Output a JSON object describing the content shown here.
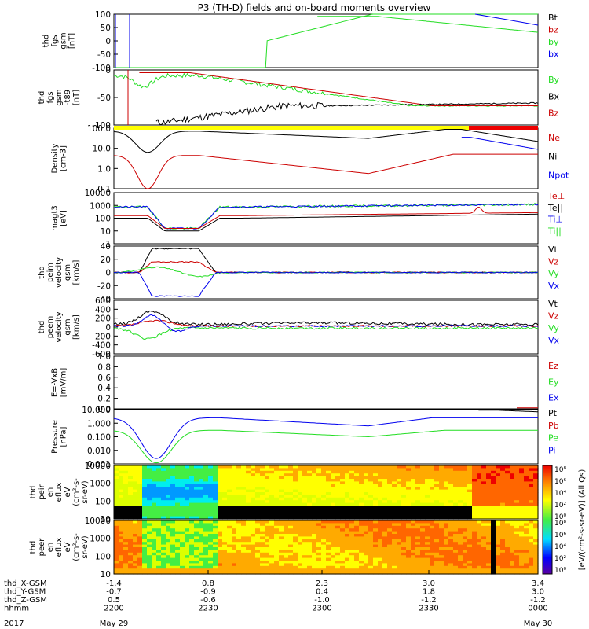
{
  "title": "P3 (TH-D) fields and on-board moments overview",
  "year": "2017",
  "colors": {
    "black": "#000000",
    "red": "#cc0000",
    "green": "#22dd22",
    "blue": "#0000ee",
    "yellow": "#ffff00"
  },
  "chart_data": [
    {
      "type": "line",
      "ylabel": [
        "thd",
        "fgs",
        "gsm",
        "[nT]"
      ],
      "yticks": [
        "100",
        "50",
        "0",
        "-50",
        "-100"
      ],
      "ylim": [
        -100,
        100
      ],
      "legend": [
        {
          "name": "Bt",
          "color": "black"
        },
        {
          "name": "bz",
          "color": "red"
        },
        {
          "name": "by",
          "color": "green"
        },
        {
          "name": "bx",
          "color": "blue"
        }
      ]
    },
    {
      "type": "line",
      "ylabel": [
        "thd",
        "fgs",
        "gsm",
        "-t89",
        "[nT]"
      ],
      "yticks": [
        "0",
        "-50",
        "-100"
      ],
      "ylim": [
        -125,
        25
      ],
      "legend": [
        {
          "name": "By",
          "color": "green"
        },
        {
          "name": "Bx",
          "color": "black"
        },
        {
          "name": "Bz",
          "color": "red"
        }
      ]
    },
    {
      "type": "line",
      "log": true,
      "ylabel": [
        "Density",
        "[cm-3]"
      ],
      "yticks": [
        "100.0",
        "10.0",
        "1.0",
        "0.1"
      ],
      "legend": [
        {
          "name": "Ne",
          "color": "red"
        },
        {
          "name": "Ni",
          "color": "black"
        },
        {
          "name": "Npot",
          "color": "blue"
        }
      ]
    },
    {
      "type": "line",
      "log": true,
      "ylabel": [
        "magt3",
        "[eV]"
      ],
      "yticks": [
        "10000",
        "1000",
        "100",
        "10",
        "1"
      ],
      "legend": [
        {
          "name": "Te⊥",
          "color": "red"
        },
        {
          "name": "Te||",
          "color": "black"
        },
        {
          "name": "Ti⊥",
          "color": "blue"
        },
        {
          "name": "Ti||",
          "color": "green"
        }
      ]
    },
    {
      "type": "line",
      "ylabel": [
        "thd",
        "peim",
        "velocity",
        "gsm",
        "[km/s]"
      ],
      "yticks": [
        "40",
        "20",
        "0",
        "-20",
        "-40"
      ],
      "ylim": [
        -40,
        40
      ],
      "legend": [
        {
          "name": "Vt",
          "color": "black"
        },
        {
          "name": "Vz",
          "color": "red"
        },
        {
          "name": "Vy",
          "color": "green"
        },
        {
          "name": "Vx",
          "color": "blue"
        }
      ]
    },
    {
      "type": "line",
      "ylabel": [
        "thd",
        "peem",
        "velocity",
        "gsm",
        "[km/s]"
      ],
      "yticks": [
        "600",
        "400",
        "200",
        "0",
        "-200",
        "-400",
        "-600"
      ],
      "ylim": [
        -600,
        600
      ],
      "legend": [
        {
          "name": "Vt",
          "color": "black"
        },
        {
          "name": "Vz",
          "color": "red"
        },
        {
          "name": "Vy",
          "color": "green"
        },
        {
          "name": "Vx",
          "color": "blue"
        }
      ]
    },
    {
      "type": "line",
      "ylabel": [
        "E=-VxB",
        "[mV/m]"
      ],
      "yticks": [
        "1.0",
        "0.8",
        "0.6",
        "0.4",
        "0.2",
        "0.0"
      ],
      "ylim": [
        0,
        1
      ],
      "legend": [
        {
          "name": "Ez",
          "color": "red"
        },
        {
          "name": "Ey",
          "color": "green"
        },
        {
          "name": "Ex",
          "color": "blue"
        }
      ]
    },
    {
      "type": "line",
      "log": true,
      "ylabel": [
        "Pressure",
        "[nPa]"
      ],
      "yticks": [
        "10.000",
        "1.000",
        "0.100",
        "0.010",
        "0.001"
      ],
      "legend": [
        {
          "name": "Pt",
          "color": "black"
        },
        {
          "name": "Pb",
          "color": "red"
        },
        {
          "name": "Pe",
          "color": "green"
        },
        {
          "name": "Pi",
          "color": "blue"
        }
      ]
    },
    {
      "type": "heatmap",
      "ylabel": [
        "thd",
        "peir",
        "en",
        "eflux",
        "eV",
        "(cm²-s-",
        "sr-eV)"
      ],
      "yticks": [
        "10000",
        "1000",
        "100",
        "10"
      ]
    },
    {
      "type": "heatmap",
      "ylabel": [
        "thd",
        "peer",
        "en",
        "eflux",
        "eV",
        "(cm²-s-",
        "sr-eV)"
      ],
      "yticks": [
        "10000",
        "1000",
        "100",
        "10"
      ]
    }
  ],
  "colorbar": {
    "label": "[eV/(cm²-s-sr-eV)] (All Qs)",
    "ticks": [
      "10⁸",
      "10⁶",
      "10⁴",
      "10²",
      "10⁰"
    ]
  },
  "xaxis": {
    "row_labels": [
      "thd_X-GSM",
      "thd_Y-GSM",
      "thd_Z-GSM",
      "hhmm"
    ],
    "columns": [
      {
        "vals": [
          "-1.4",
          "-0.7",
          "0.5",
          "2200"
        ],
        "date": "May 29"
      },
      {
        "vals": [
          "0.8",
          "-0.9",
          "-0.6",
          "2230"
        ],
        "date": ""
      },
      {
        "vals": [
          "2.3",
          "0.4",
          "-1.0",
          "2300"
        ],
        "date": ""
      },
      {
        "vals": [
          "3.0",
          "1.8",
          "-1.2",
          "2330"
        ],
        "date": ""
      },
      {
        "vals": [
          "3.4",
          "3.0",
          "-1.2",
          "0000"
        ],
        "date": "May 30"
      }
    ]
  }
}
